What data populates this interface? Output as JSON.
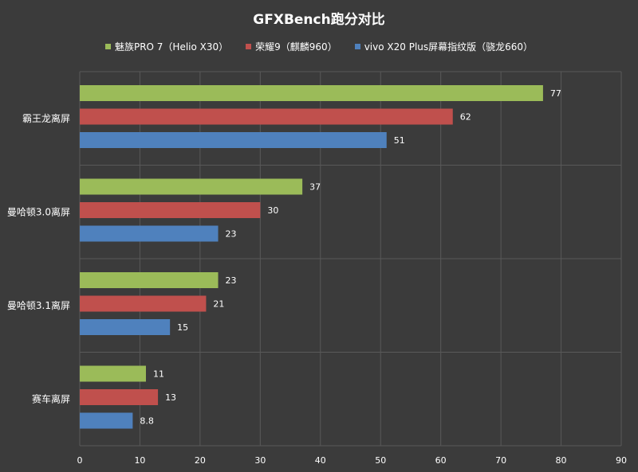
{
  "chart_data": {
    "type": "bar",
    "orientation": "horizontal",
    "title": "GFXBench跑分对比",
    "categories": [
      "霸王龙离屏",
      "曼哈顿3.0离屏",
      "曼哈顿3.1离屏",
      "赛车离屏"
    ],
    "series": [
      {
        "name": "魅族PRO 7（Helio X30）",
        "color": "#9bbb59",
        "values": [
          77,
          37,
          23,
          11
        ]
      },
      {
        "name": "荣耀9（麒麟960）",
        "color": "#c0504d",
        "values": [
          62,
          30,
          21,
          13
        ]
      },
      {
        "name": "vivo X20 Plus屏幕指纹版（骁龙660）",
        "color": "#4f81bd",
        "values": [
          51,
          23,
          15,
          8.8
        ]
      }
    ],
    "xlim": [
      0,
      90
    ],
    "xticks": [
      0,
      10,
      20,
      30,
      40,
      50,
      60,
      70,
      80,
      90
    ],
    "grid": true,
    "legend_position": "top"
  }
}
